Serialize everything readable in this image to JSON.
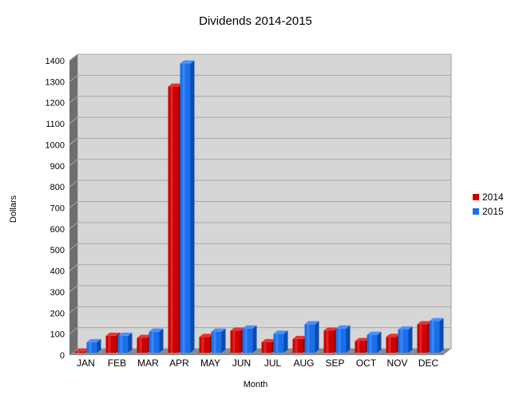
{
  "chart_data": {
    "type": "bar",
    "title": "Dividends 2014-2015",
    "xlabel": "Month",
    "ylabel": "Dollars",
    "categories": [
      "JAN",
      "FEB",
      "MAR",
      "APR",
      "MAY",
      "JUN",
      "JUL",
      "AUG",
      "SEP",
      "OCT",
      "NOV",
      "DEC"
    ],
    "series": [
      {
        "name": "2014",
        "color": "#cc0000",
        "values": [
          5,
          80,
          70,
          1265,
          75,
          105,
          50,
          65,
          105,
          55,
          75,
          135
        ]
      },
      {
        "name": "2015",
        "color": "#1a6fe8",
        "values": [
          50,
          80,
          100,
          1375,
          100,
          115,
          90,
          135,
          115,
          85,
          110,
          150
        ]
      }
    ],
    "ylim": [
      0,
      1400
    ],
    "yticks": [
      0,
      100,
      200,
      300,
      400,
      500,
      600,
      700,
      800,
      900,
      1000,
      1100,
      1200,
      1300,
      1400
    ],
    "grid": true,
    "legend_position": "right",
    "plot_background": "#d6d6d6",
    "wall_color": "#6e6e6e"
  }
}
